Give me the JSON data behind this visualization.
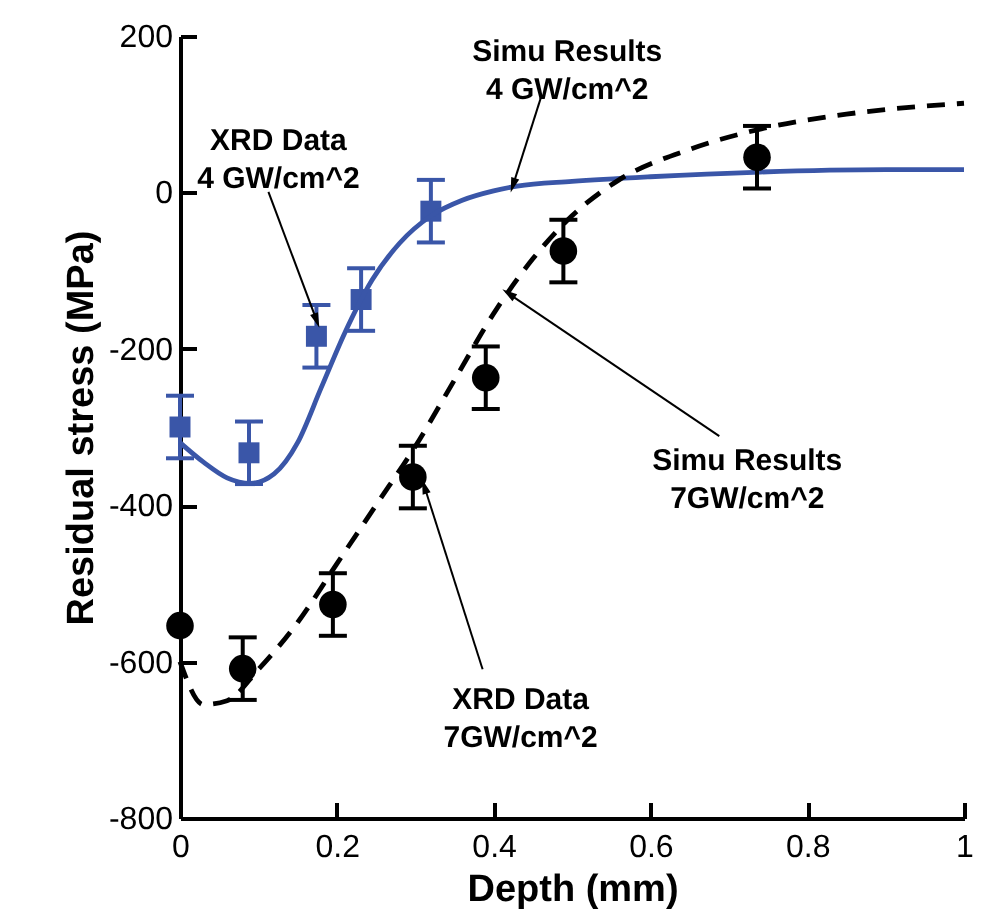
{
  "chart_data": {
    "type": "scatter",
    "xlabel": "Depth (mm)",
    "ylabel": "Residual stress (MPa)",
    "xlim": [
      0,
      1
    ],
    "xticks": [
      0,
      0.2,
      0.4,
      0.6,
      0.8,
      1
    ],
    "ylim": [
      -800,
      200
    ],
    "yticks": [
      -800,
      -600,
      -400,
      -200,
      0,
      200
    ],
    "grid": false,
    "series": [
      {
        "marker": "square",
        "color": "#3a56a8",
        "x": [
          0,
          0.088,
          0.174,
          0.231,
          0.32
        ],
        "values": [
          -300,
          -333,
          -184,
          -137,
          -24
        ],
        "errors": [
          40,
          40,
          40,
          40,
          40
        ]
      },
      {
        "type": "line",
        "marker": "none",
        "line_style": "solid",
        "color": "#3a56a8",
        "x": [
          0,
          0.03,
          0.06,
          0.09,
          0.12,
          0.15,
          0.18,
          0.21,
          0.245,
          0.28,
          0.32,
          0.36,
          0.4,
          0.43,
          0.5,
          0.6,
          0.74,
          0.9,
          1.0
        ],
        "values": [
          -320,
          -345,
          -365,
          -372,
          -360,
          -320,
          -250,
          -180,
          -112,
          -65,
          -30,
          -10,
          2,
          8,
          14,
          20,
          26,
          29,
          29
        ]
      },
      {
        "marker": "circle",
        "color": "#000000",
        "x": [
          0,
          0.08,
          0.195,
          0.297,
          0.39,
          0.489,
          0.736
        ],
        "values": [
          -554,
          -609,
          -527,
          -364,
          -237,
          -75,
          45
        ],
        "errors": [
          null,
          40,
          40,
          40,
          40,
          40,
          40
        ]
      },
      {
        "type": "line",
        "marker": "none",
        "line_style": "dashed",
        "color": "#000000",
        "x": [
          0,
          0.03,
          0.06,
          0.1,
          0.15,
          0.2,
          0.25,
          0.3,
          0.35,
          0.4,
          0.45,
          0.5,
          0.56,
          0.65,
          0.736,
          0.85,
          1.0
        ],
        "values": [
          -600,
          -655,
          -650,
          -610,
          -550,
          -475,
          -400,
          -325,
          -240,
          -155,
          -85,
          -30,
          16,
          55,
          80,
          100,
          114
        ]
      }
    ],
    "annotations": [
      {
        "text": "XRD Data\n4 GW/cm^2",
        "x": 0.174,
        "y": -163
      },
      {
        "text": "Simu Results\n4 GW/cm^2",
        "x": 0.425,
        "y": 10
      },
      {
        "text": "Simu Results\n7GW/cm^2",
        "x": 0.42,
        "y": -130
      },
      {
        "text": "XRD Data\n7GW/cm^2",
        "x": 0.312,
        "y": -377
      }
    ]
  }
}
